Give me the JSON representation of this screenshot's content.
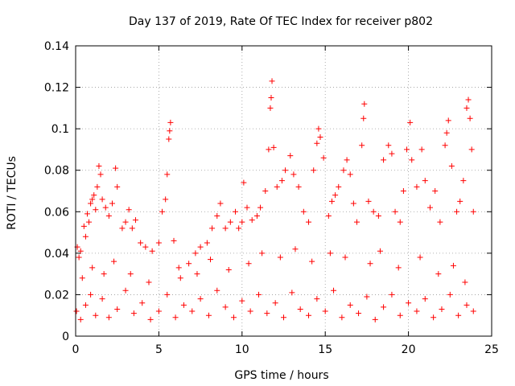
{
  "chart_data": {
    "type": "scatter",
    "title": "Day 137 of 2019, Rate Of TEC Index for receiver p802",
    "xlabel": "GPS time / hours",
    "ylabel": "ROTI / TECUs",
    "xlim": [
      0,
      25
    ],
    "ylim": [
      0,
      0.14
    ],
    "xticks": [
      "0",
      "5",
      "10",
      "15",
      "20",
      "25"
    ],
    "yticks": [
      "0",
      "0.02",
      "0.04",
      "0.06",
      "0.08",
      "0.1",
      "0.12",
      "0.14"
    ],
    "grid": true,
    "marker": "plus",
    "color": "#ff0000",
    "series": [
      {
        "points": [
          [
            0.1,
            0.043
          ],
          [
            0.2,
            0.038
          ],
          [
            0.3,
            0.041
          ],
          [
            0.5,
            0.053
          ],
          [
            0.6,
            0.048
          ],
          [
            0.7,
            0.059
          ],
          [
            0.8,
            0.055
          ],
          [
            0.9,
            0.064
          ],
          [
            1.0,
            0.066
          ],
          [
            1.1,
            0.068
          ],
          [
            1.2,
            0.061
          ],
          [
            1.3,
            0.072
          ],
          [
            1.4,
            0.082
          ],
          [
            1.5,
            0.078
          ],
          [
            1.6,
            0.066
          ],
          [
            1.8,
            0.062
          ],
          [
            2.0,
            0.058
          ],
          [
            2.2,
            0.064
          ],
          [
            2.4,
            0.081
          ],
          [
            2.5,
            0.072
          ],
          [
            2.8,
            0.052
          ],
          [
            3.0,
            0.055
          ],
          [
            3.2,
            0.061
          ],
          [
            3.4,
            0.052
          ],
          [
            3.6,
            0.056
          ],
          [
            3.9,
            0.045
          ],
          [
            4.2,
            0.043
          ],
          [
            4.6,
            0.041
          ],
          [
            5.0,
            0.045
          ],
          [
            5.2,
            0.06
          ],
          [
            5.4,
            0.066
          ],
          [
            5.5,
            0.078
          ],
          [
            5.6,
            0.095
          ],
          [
            5.65,
            0.099
          ],
          [
            5.7,
            0.103
          ],
          [
            5.9,
            0.046
          ],
          [
            6.3,
            0.028
          ],
          [
            6.8,
            0.035
          ],
          [
            7.2,
            0.04
          ],
          [
            7.5,
            0.043
          ],
          [
            7.9,
            0.045
          ],
          [
            8.2,
            0.052
          ],
          [
            8.5,
            0.058
          ],
          [
            8.7,
            0.064
          ],
          [
            9.0,
            0.052
          ],
          [
            9.3,
            0.055
          ],
          [
            9.6,
            0.06
          ],
          [
            9.8,
            0.052
          ],
          [
            10.0,
            0.055
          ],
          [
            10.1,
            0.074
          ],
          [
            10.3,
            0.062
          ],
          [
            10.6,
            0.056
          ],
          [
            10.9,
            0.058
          ],
          [
            11.1,
            0.062
          ],
          [
            11.4,
            0.07
          ],
          [
            11.6,
            0.09
          ],
          [
            11.7,
            0.11
          ],
          [
            11.75,
            0.115
          ],
          [
            11.8,
            0.123
          ],
          [
            11.9,
            0.091
          ],
          [
            12.1,
            0.072
          ],
          [
            12.4,
            0.075
          ],
          [
            12.6,
            0.08
          ],
          [
            12.9,
            0.087
          ],
          [
            13.1,
            0.078
          ],
          [
            13.4,
            0.072
          ],
          [
            13.7,
            0.06
          ],
          [
            14.0,
            0.055
          ],
          [
            14.3,
            0.08
          ],
          [
            14.5,
            0.093
          ],
          [
            14.6,
            0.1
          ],
          [
            14.7,
            0.096
          ],
          [
            14.9,
            0.086
          ],
          [
            15.2,
            0.058
          ],
          [
            15.4,
            0.065
          ],
          [
            15.6,
            0.068
          ],
          [
            15.8,
            0.072
          ],
          [
            16.1,
            0.08
          ],
          [
            16.3,
            0.085
          ],
          [
            16.5,
            0.078
          ],
          [
            16.7,
            0.064
          ],
          [
            16.9,
            0.055
          ],
          [
            17.2,
            0.092
          ],
          [
            17.3,
            0.105
          ],
          [
            17.35,
            0.112
          ],
          [
            17.6,
            0.065
          ],
          [
            17.9,
            0.06
          ],
          [
            18.2,
            0.058
          ],
          [
            18.5,
            0.085
          ],
          [
            18.8,
            0.092
          ],
          [
            19.0,
            0.088
          ],
          [
            19.2,
            0.06
          ],
          [
            19.5,
            0.055
          ],
          [
            19.7,
            0.07
          ],
          [
            19.9,
            0.09
          ],
          [
            20.1,
            0.103
          ],
          [
            20.2,
            0.085
          ],
          [
            20.5,
            0.072
          ],
          [
            20.8,
            0.09
          ],
          [
            21.0,
            0.075
          ],
          [
            21.3,
            0.062
          ],
          [
            21.6,
            0.07
          ],
          [
            21.9,
            0.055
          ],
          [
            22.2,
            0.092
          ],
          [
            22.3,
            0.098
          ],
          [
            22.4,
            0.104
          ],
          [
            22.6,
            0.082
          ],
          [
            22.9,
            0.06
          ],
          [
            23.1,
            0.065
          ],
          [
            23.3,
            0.075
          ],
          [
            23.5,
            0.11
          ],
          [
            23.6,
            0.114
          ],
          [
            23.7,
            0.105
          ],
          [
            23.8,
            0.09
          ],
          [
            23.9,
            0.06
          ],
          [
            0.05,
            0.012
          ],
          [
            0.3,
            0.008
          ],
          [
            0.6,
            0.015
          ],
          [
            0.9,
            0.02
          ],
          [
            1.2,
            0.01
          ],
          [
            1.6,
            0.018
          ],
          [
            2.0,
            0.009
          ],
          [
            2.5,
            0.013
          ],
          [
            3.0,
            0.022
          ],
          [
            3.5,
            0.011
          ],
          [
            4.0,
            0.016
          ],
          [
            4.5,
            0.008
          ],
          [
            5.0,
            0.012
          ],
          [
            5.5,
            0.02
          ],
          [
            6.0,
            0.009
          ],
          [
            6.5,
            0.015
          ],
          [
            7.0,
            0.012
          ],
          [
            7.5,
            0.018
          ],
          [
            8.0,
            0.01
          ],
          [
            8.5,
            0.022
          ],
          [
            9.0,
            0.014
          ],
          [
            9.5,
            0.009
          ],
          [
            10.0,
            0.017
          ],
          [
            10.5,
            0.012
          ],
          [
            11.0,
            0.02
          ],
          [
            11.5,
            0.011
          ],
          [
            12.0,
            0.016
          ],
          [
            12.5,
            0.009
          ],
          [
            13.0,
            0.021
          ],
          [
            13.5,
            0.013
          ],
          [
            14.0,
            0.01
          ],
          [
            14.5,
            0.018
          ],
          [
            15.0,
            0.012
          ],
          [
            15.5,
            0.022
          ],
          [
            16.0,
            0.009
          ],
          [
            16.5,
            0.015
          ],
          [
            17.0,
            0.011
          ],
          [
            17.5,
            0.019
          ],
          [
            18.0,
            0.008
          ],
          [
            18.5,
            0.014
          ],
          [
            19.0,
            0.02
          ],
          [
            19.5,
            0.01
          ],
          [
            20.0,
            0.016
          ],
          [
            20.5,
            0.012
          ],
          [
            21.0,
            0.018
          ],
          [
            21.5,
            0.009
          ],
          [
            22.0,
            0.013
          ],
          [
            22.5,
            0.02
          ],
          [
            23.0,
            0.01
          ],
          [
            23.5,
            0.015
          ],
          [
            23.9,
            0.012
          ],
          [
            0.4,
            0.028
          ],
          [
            1.0,
            0.033
          ],
          [
            1.7,
            0.03
          ],
          [
            2.3,
            0.036
          ],
          [
            3.3,
            0.03
          ],
          [
            4.4,
            0.026
          ],
          [
            6.2,
            0.033
          ],
          [
            7.3,
            0.03
          ],
          [
            8.1,
            0.037
          ],
          [
            9.2,
            0.032
          ],
          [
            10.4,
            0.035
          ],
          [
            11.2,
            0.04
          ],
          [
            12.3,
            0.038
          ],
          [
            13.2,
            0.042
          ],
          [
            14.2,
            0.036
          ],
          [
            15.3,
            0.04
          ],
          [
            16.2,
            0.038
          ],
          [
            17.7,
            0.035
          ],
          [
            18.3,
            0.041
          ],
          [
            19.4,
            0.033
          ],
          [
            20.7,
            0.038
          ],
          [
            21.8,
            0.03
          ],
          [
            22.7,
            0.034
          ],
          [
            23.4,
            0.026
          ]
        ]
      }
    ]
  }
}
